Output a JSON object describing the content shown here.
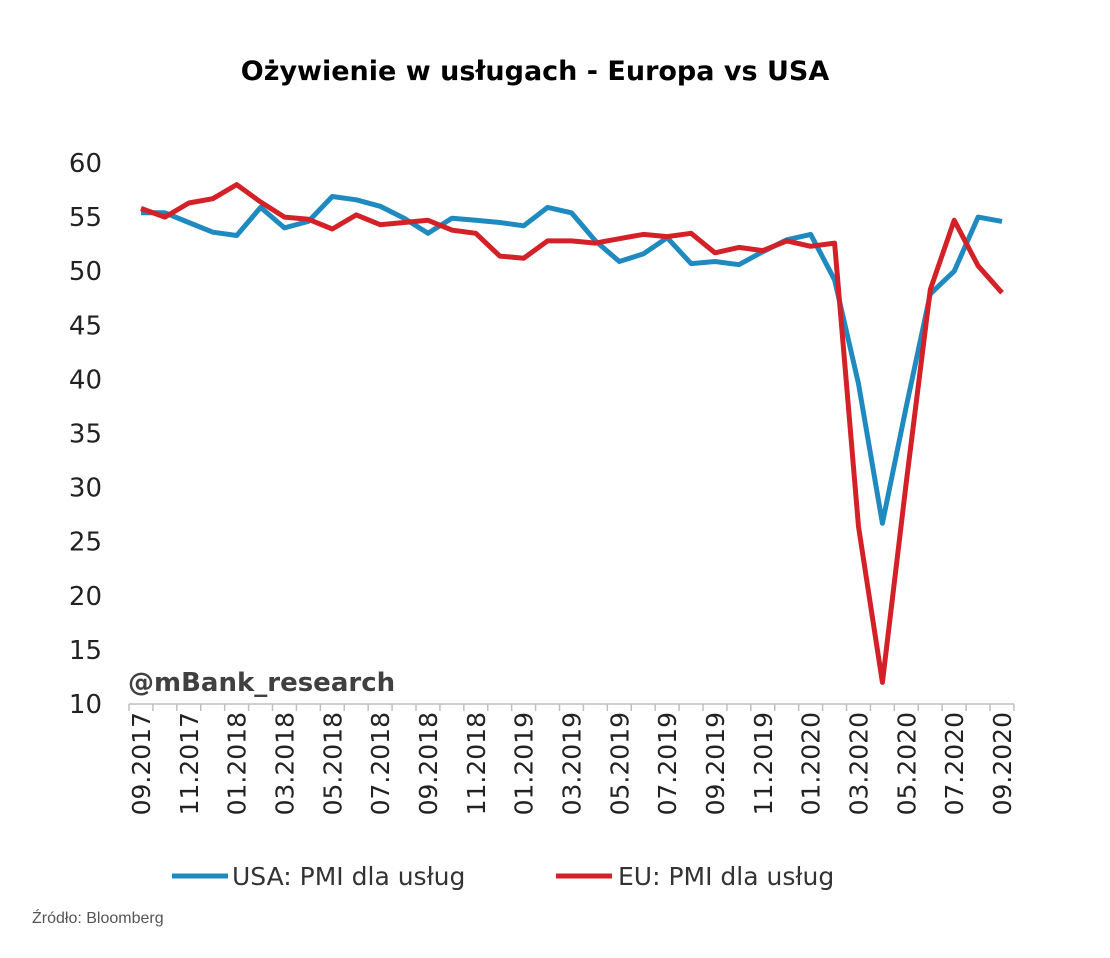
{
  "chart_data": {
    "type": "line",
    "title": "Ożywienie w usługach - Europa vs USA",
    "xlabel": "",
    "ylabel": "",
    "ylim": [
      10,
      60
    ],
    "yticks": [
      10,
      15,
      20,
      25,
      30,
      35,
      40,
      45,
      50,
      55,
      60
    ],
    "x": [
      "09.2017",
      "10.2017",
      "11.2017",
      "12.2017",
      "01.2018",
      "02.2018",
      "03.2018",
      "04.2018",
      "05.2018",
      "06.2018",
      "07.2018",
      "08.2018",
      "09.2018",
      "10.2018",
      "11.2018",
      "12.2018",
      "01.2019",
      "02.2019",
      "03.2019",
      "04.2019",
      "05.2019",
      "06.2019",
      "07.2019",
      "08.2019",
      "09.2019",
      "10.2019",
      "11.2019",
      "12.2019",
      "01.2020",
      "02.2020",
      "03.2020",
      "04.2020",
      "05.2020",
      "06.2020",
      "07.2020",
      "08.2020",
      "09.2020"
    ],
    "xtick_labels": [
      "09.2017",
      "11.2017",
      "01.2018",
      "03.2018",
      "05.2018",
      "07.2018",
      "09.2018",
      "11.2018",
      "01.2019",
      "03.2019",
      "05.2019",
      "07.2019",
      "09.2019",
      "11.2019",
      "01.2020",
      "03.2020",
      "05.2020",
      "07.2020",
      "09.2020"
    ],
    "grid": false,
    "legend_placement": "bottom",
    "series": [
      {
        "name": "USA: PMI dla usług",
        "color": "#1f8ac0",
        "values": [
          55.4,
          55.4,
          54.5,
          53.6,
          53.3,
          55.9,
          54.0,
          54.6,
          56.9,
          56.6,
          56.0,
          54.9,
          53.5,
          54.9,
          54.7,
          54.5,
          54.2,
          55.9,
          55.4,
          52.8,
          50.9,
          51.6,
          53.1,
          50.7,
          50.9,
          50.6,
          51.8,
          52.9,
          53.4,
          49.2,
          39.6,
          26.7,
          37.5,
          47.9,
          50.0,
          55.0,
          54.6
        ]
      },
      {
        "name": "EU: PMI dla usług",
        "color": "#d42027",
        "values": [
          55.8,
          55.0,
          56.3,
          56.7,
          58.0,
          56.4,
          55.0,
          54.8,
          53.9,
          55.2,
          54.3,
          54.5,
          54.7,
          53.8,
          53.5,
          51.4,
          51.2,
          52.8,
          52.8,
          52.6,
          53.0,
          53.4,
          53.2,
          53.5,
          51.7,
          52.2,
          51.9,
          52.8,
          52.3,
          52.6,
          26.4,
          12.0,
          30.5,
          48.3,
          54.7,
          50.5,
          48.0
        ]
      }
    ]
  },
  "watermark": "@mBank_research",
  "source": "Źródło: Bloomberg"
}
